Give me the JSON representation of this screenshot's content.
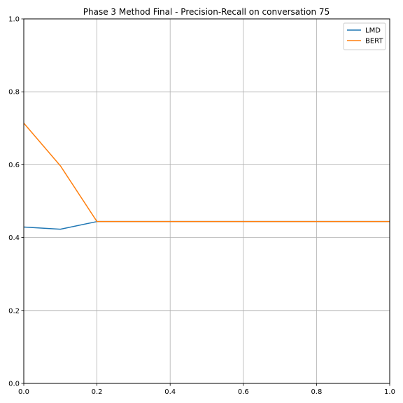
{
  "chart_data": {
    "type": "line",
    "title": "Phase 3 Method Final - Precision-Recall on conversation 75",
    "xlabel": "",
    "ylabel": "",
    "xlim": [
      0,
      1
    ],
    "ylim": [
      0,
      1
    ],
    "xticks": [
      "0.0",
      "0.2",
      "0.4",
      "0.6",
      "0.8",
      "1.0"
    ],
    "yticks": [
      "0.0",
      "0.2",
      "0.4",
      "0.6",
      "0.8",
      "1.0"
    ],
    "grid": true,
    "legend_position": "top-right",
    "series": [
      {
        "name": "LMD",
        "color": "#1f77b4",
        "x": [
          0.0,
          0.1,
          0.2,
          0.3,
          0.4,
          0.5,
          0.6,
          0.7,
          0.8,
          0.9,
          1.0
        ],
        "y": [
          0.429,
          0.423,
          0.444,
          0.444,
          0.444,
          0.444,
          0.444,
          0.444,
          0.444,
          0.444,
          0.444
        ]
      },
      {
        "name": "BERT",
        "color": "#ff7f0e",
        "x": [
          0.0,
          0.1,
          0.2,
          0.3,
          0.4,
          0.5,
          0.6,
          0.7,
          0.8,
          0.9,
          1.0
        ],
        "y": [
          0.714,
          0.597,
          0.444,
          0.444,
          0.444,
          0.444,
          0.444,
          0.444,
          0.444,
          0.444,
          0.444
        ]
      }
    ]
  }
}
